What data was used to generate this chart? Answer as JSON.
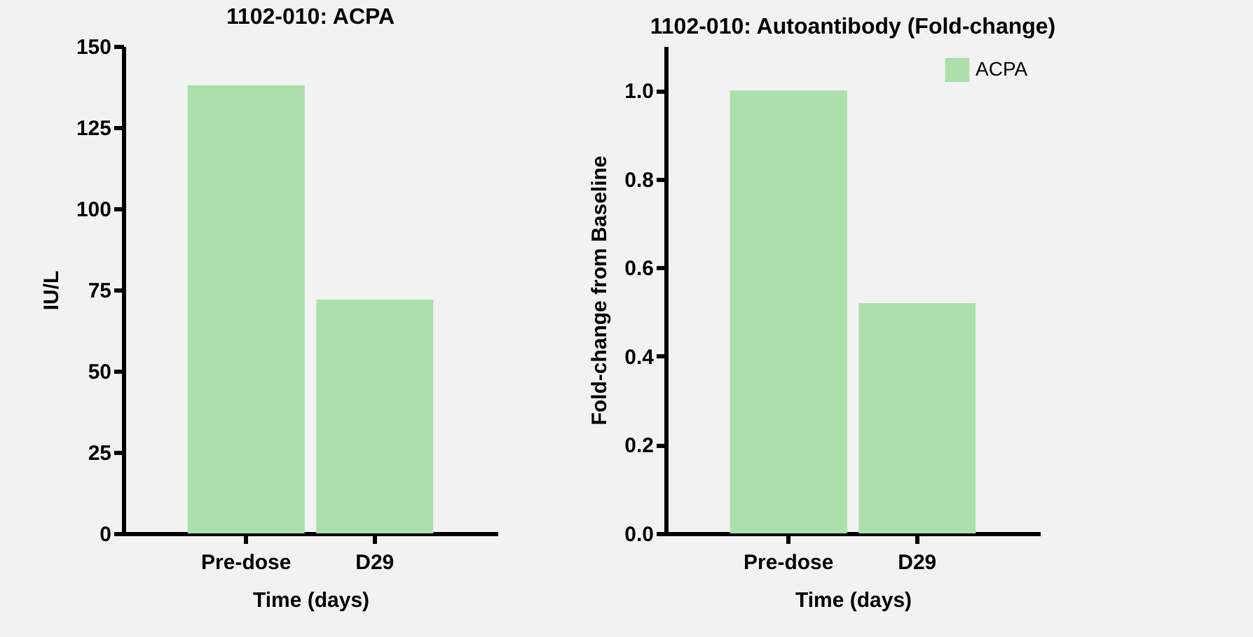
{
  "chart_data": [
    {
      "type": "bar",
      "title": "1102-010: ACPA",
      "xlabel": "Time (days)",
      "ylabel": "IU/L",
      "categories": [
        "Pre-dose",
        "D29"
      ],
      "series": [
        {
          "color": "#acdfac",
          "values": [
            138,
            72
          ]
        }
      ],
      "ylim": [
        0,
        150
      ],
      "yticks": [
        0,
        25,
        50,
        75,
        100,
        125,
        150
      ],
      "grid": false
    },
    {
      "type": "bar",
      "title": "1102-010: Autoantibody (Fold-change)",
      "xlabel": "Time (days)",
      "ylabel": "Fold-change from Baseline",
      "categories": [
        "Pre-dose",
        "D29"
      ],
      "series": [
        {
          "name": "ACPA",
          "color": "#acdfac",
          "values": [
            1.0,
            0.52
          ]
        }
      ],
      "ylim": [
        0,
        1.1
      ],
      "yticks": [
        {
          "value": 0,
          "label": "0.0"
        },
        {
          "value": 0.2,
          "label": "0.2"
        },
        {
          "value": 0.4,
          "label": "0.4"
        },
        {
          "value": 0.6,
          "label": "0.6"
        },
        {
          "value": 0.8,
          "label": "0.8"
        },
        {
          "value": 1.0,
          "label": "1.0"
        }
      ],
      "grid": false,
      "legend": "top right"
    }
  ]
}
